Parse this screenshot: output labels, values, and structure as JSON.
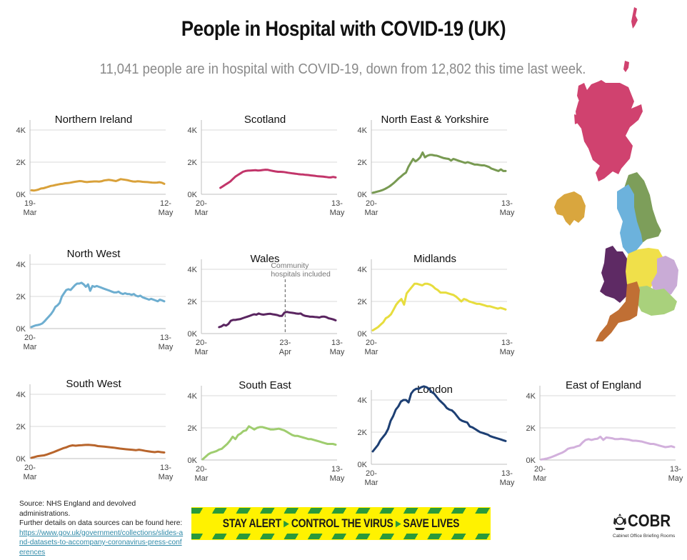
{
  "title": "People in Hospital with COVID-19 (UK)",
  "subtitle": "11,041 people are in hospital with COVID-19, down from 12,802 this time last week.",
  "footer": {
    "source_line1": "Source: NHS England and devolved administrations.",
    "source_line2": "Further details on data sources can be found here:",
    "link_text": "https://www.gov.uk/government/collections/slides-and-datasets-to-accompany-coronavirus-press-conferences",
    "banner": {
      "part1": "STAY ALERT",
      "part2": "CONTROL THE VIRUS",
      "part3": "SAVE LIVES",
      "arrow": "▸"
    },
    "logo": {
      "word": "COBR",
      "subtitle": "Cabinet Office Briefing Rooms"
    }
  },
  "map": {
    "regions": [
      {
        "name": "Scotland",
        "color": "#d0426f"
      },
      {
        "name": "Northern Ireland",
        "color": "#d9a63e"
      },
      {
        "name": "North East & Yorkshire",
        "color": "#7d9e5a"
      },
      {
        "name": "North West",
        "color": "#6cb2dc"
      },
      {
        "name": "Midlands",
        "color": "#f0e04a"
      },
      {
        "name": "East of England",
        "color": "#c9abd6"
      },
      {
        "name": "Wales",
        "color": "#5e2a64"
      },
      {
        "name": "London",
        "color": "#1f5aa6"
      },
      {
        "name": "South East",
        "color": "#a9d17c"
      },
      {
        "name": "South West",
        "color": "#c06f34"
      }
    ]
  },
  "chart_data": [
    {
      "type": "line",
      "title": "Northern Ireland",
      "color": "#d9a13a",
      "x_start_label": [
        "19-",
        "Mar"
      ],
      "x_end_label": [
        "12-",
        "May"
      ],
      "ylim": [
        0,
        4000
      ],
      "yticks": [
        "0K",
        "2K",
        "4K"
      ],
      "values": [
        250,
        230,
        260,
        300,
        360,
        380,
        420,
        470,
        520,
        540,
        580,
        610,
        640,
        660,
        690,
        700,
        720,
        750,
        780,
        800,
        820,
        810,
        780,
        760,
        780,
        790,
        800,
        800,
        790,
        810,
        860,
        880,
        900,
        880,
        850,
        820,
        880,
        940,
        920,
        900,
        870,
        830,
        800,
        790,
        810,
        800,
        780,
        770,
        760,
        740,
        730,
        720,
        730,
        750,
        720,
        650
      ]
    },
    {
      "type": "line",
      "title": "Scotland",
      "color": "#c2356a",
      "x_start_label": [
        "20-",
        "Mar"
      ],
      "x_end_label": [
        "13-",
        "May"
      ],
      "ylim": [
        0,
        4000
      ],
      "yticks": [
        "0K",
        "2K",
        "4K"
      ],
      "start_offset": 7,
      "values": [
        400,
        500,
        600,
        700,
        800,
        950,
        1100,
        1200,
        1300,
        1400,
        1450,
        1470,
        1480,
        1490,
        1500,
        1480,
        1490,
        1510,
        1530,
        1520,
        1480,
        1450,
        1420,
        1400,
        1400,
        1390,
        1370,
        1340,
        1320,
        1300,
        1280,
        1260,
        1240,
        1230,
        1210,
        1200,
        1180,
        1160,
        1140,
        1120,
        1110,
        1100,
        1080,
        1060,
        1050,
        1080,
        1050
      ]
    },
    {
      "type": "line",
      "title": "North East & Yorkshire",
      "color": "#789a52",
      "x_start_label": [
        "20-",
        "Mar"
      ],
      "x_end_label": [
        "13-",
        "May"
      ],
      "ylim": [
        0,
        4000
      ],
      "yticks": [
        "0K",
        "2K",
        "4K"
      ],
      "values": [
        100,
        130,
        170,
        210,
        260,
        320,
        400,
        490,
        600,
        720,
        860,
        1000,
        1120,
        1250,
        1350,
        1700,
        1950,
        2200,
        2050,
        2150,
        2300,
        2600,
        2300,
        2400,
        2450,
        2450,
        2420,
        2400,
        2350,
        2300,
        2250,
        2220,
        2200,
        2100,
        2200,
        2150,
        2100,
        2050,
        2000,
        1950,
        2000,
        1950,
        1900,
        1850,
        1850,
        1820,
        1800,
        1800,
        1750,
        1700,
        1600,
        1550,
        1500,
        1450,
        1550,
        1450,
        1450
      ]
    },
    {
      "type": "line",
      "title": "North West",
      "color": "#6eaed0",
      "x_start_label": [
        "20-",
        "Mar"
      ],
      "x_end_label": [
        "13-",
        "May"
      ],
      "ylim": [
        0,
        4000
      ],
      "yticks": [
        "0K",
        "2K",
        "4K"
      ],
      "values": [
        100,
        150,
        200,
        220,
        260,
        320,
        450,
        600,
        750,
        900,
        1100,
        1350,
        1450,
        1600,
        2000,
        2200,
        2400,
        2450,
        2400,
        2550,
        2700,
        2800,
        2800,
        2850,
        2750,
        2600,
        2750,
        2350,
        2650,
        2600,
        2650,
        2600,
        2550,
        2500,
        2450,
        2400,
        2350,
        2300,
        2250,
        2250,
        2300,
        2200,
        2150,
        2200,
        2150,
        2150,
        2100,
        2150,
        2050,
        2000,
        2050,
        1950,
        1900,
        1850,
        1800,
        1850,
        1800,
        1750,
        1700,
        1800,
        1750,
        1700
      ]
    },
    {
      "type": "line",
      "title": "Wales",
      "color": "#5a2560",
      "x_start_label": [
        "20-",
        "Mar"
      ],
      "x_end_label": [
        "13-",
        "May"
      ],
      "mid_label": [
        "23-",
        "Apr"
      ],
      "mid_index_fraction": 0.62,
      "annotation": [
        "Community",
        "hospitals included"
      ],
      "ylim": [
        0,
        4000
      ],
      "yticks": [
        "0K",
        "2K",
        "4K"
      ],
      "start_offset": 7,
      "values": [
        400,
        450,
        550,
        500,
        600,
        800,
        850,
        850,
        880,
        900,
        950,
        1000,
        1050,
        1100,
        1150,
        1200,
        1180,
        1250,
        1200,
        1180,
        1200,
        1220,
        1230,
        1200,
        1180,
        1150,
        1100,
        1100,
        1300,
        1350,
        1320,
        1300,
        1280,
        1250,
        1230,
        1250,
        1150,
        1100,
        1080,
        1050,
        1050,
        1030,
        1020,
        1000,
        1050,
        1060,
        1020,
        950,
        920,
        880,
        820
      ]
    },
    {
      "type": "line",
      "title": "Midlands",
      "color": "#e7dd3e",
      "x_start_label": [
        "20-",
        "Mar"
      ],
      "x_end_label": [
        "13-",
        "May"
      ],
      "ylim": [
        0,
        4000
      ],
      "yticks": [
        "0K",
        "2K",
        "4K"
      ],
      "values": [
        200,
        300,
        400,
        550,
        700,
        950,
        1050,
        1200,
        1500,
        1800,
        2000,
        2150,
        1800,
        2500,
        2700,
        2900,
        3100,
        3100,
        3050,
        3000,
        3100,
        3100,
        3050,
        2950,
        2800,
        2700,
        2550,
        2550,
        2550,
        2500,
        2450,
        2400,
        2300,
        2150,
        2000,
        2150,
        2100,
        2000,
        1950,
        1900,
        1850,
        1850,
        1800,
        1750,
        1700,
        1700,
        1650,
        1600,
        1550,
        1600,
        1550,
        1500
      ]
    },
    {
      "type": "line",
      "title": "South West",
      "color": "#b8652c",
      "x_start_label": [
        "20-",
        "Mar"
      ],
      "x_end_label": [
        "13-",
        "May"
      ],
      "ylim": [
        0,
        4000
      ],
      "yticks": [
        "0K",
        "2K",
        "4K"
      ],
      "values": [
        50,
        100,
        150,
        180,
        200,
        260,
        330,
        400,
        480,
        560,
        640,
        700,
        780,
        820,
        800,
        820,
        830,
        850,
        860,
        840,
        820,
        780,
        760,
        740,
        720,
        700,
        680,
        650,
        620,
        600,
        580,
        560,
        540,
        520,
        550,
        520,
        480,
        450,
        420,
        400,
        430,
        400,
        380
      ]
    },
    {
      "type": "line",
      "title": "South East",
      "color": "#9fcd6f",
      "x_start_label": [
        "20-",
        "Mar"
      ],
      "x_end_label": [
        "13-",
        "May"
      ],
      "ylim": [
        0,
        4000
      ],
      "yticks": [
        "0K",
        "2K",
        "4K"
      ],
      "values": [
        50,
        200,
        350,
        450,
        500,
        550,
        650,
        700,
        850,
        1000,
        1200,
        1450,
        1300,
        1550,
        1650,
        1800,
        1850,
        2100,
        2000,
        1900,
        2000,
        2050,
        2050,
        2000,
        1950,
        1900,
        1900,
        1920,
        1950,
        1900,
        1850,
        1750,
        1650,
        1550,
        1500,
        1500,
        1450,
        1400,
        1350,
        1300,
        1300,
        1250,
        1200,
        1150,
        1100,
        1050,
        1000,
        1000,
        1000,
        950
      ]
    },
    {
      "type": "line",
      "title": "London",
      "color": "#1d3f73",
      "x_start_label": [
        "20-",
        "Mar"
      ],
      "x_end_label": [
        "13-",
        "May"
      ],
      "ylim": [
        0,
        4000
      ],
      "yticks": [
        "0K",
        "2K",
        "4K"
      ],
      "values": [
        800,
        1000,
        1200,
        1500,
        1700,
        1900,
        2200,
        2700,
        3000,
        3400,
        3600,
        3900,
        4000,
        4000,
        3850,
        4400,
        4600,
        4700,
        4700,
        4800,
        4850,
        4800,
        4700,
        4500,
        4400,
        4200,
        4000,
        3850,
        3700,
        3500,
        3400,
        3350,
        3200,
        3000,
        2800,
        2700,
        2650,
        2600,
        2350,
        2300,
        2200,
        2100,
        2000,
        1950,
        1900,
        1850,
        1750,
        1700,
        1650,
        1600,
        1550,
        1500,
        1450
      ]
    },
    {
      "type": "line",
      "title": "East of England",
      "color": "#d2b0dc",
      "x_start_label": [
        "20-",
        "Mar"
      ],
      "x_end_label": [
        "13-",
        "May"
      ],
      "ylim": [
        0,
        4000
      ],
      "yticks": [
        "0K",
        "2K",
        "4K"
      ],
      "values": [
        30,
        60,
        100,
        150,
        220,
        300,
        380,
        450,
        550,
        700,
        750,
        780,
        850,
        900,
        1100,
        1250,
        1300,
        1250,
        1300,
        1320,
        1450,
        1250,
        1400,
        1380,
        1350,
        1300,
        1300,
        1320,
        1300,
        1280,
        1250,
        1200,
        1200,
        1180,
        1150,
        1100,
        1050,
        1000,
        1000,
        950,
        900,
        850,
        800,
        820,
        860,
        800
      ]
    }
  ]
}
